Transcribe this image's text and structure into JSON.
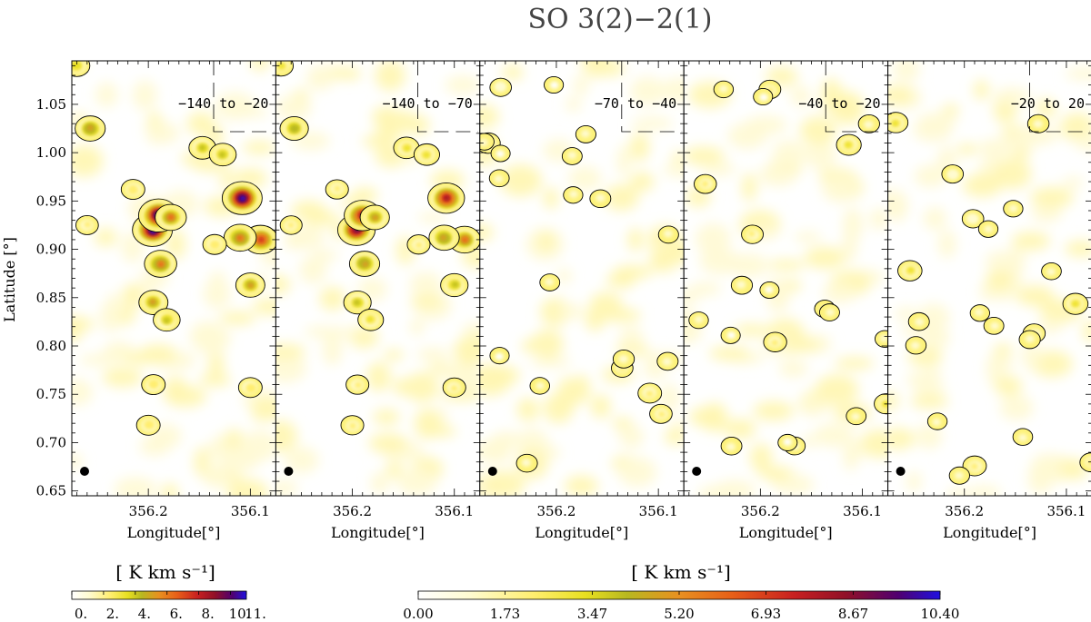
{
  "title": "SO 3(2)−2(1)",
  "chart_data": {
    "type": "heatmap",
    "title": "SO 3(2)−2(1)",
    "xlabel": "Longitude[°]",
    "ylabel": "Latitude [°]",
    "xlim": [
      356.275,
      356.075
    ],
    "ylim": [
      0.645,
      1.095
    ],
    "x_ticks": [
      "356.2",
      "356.1"
    ],
    "y_ticks": [
      "0.65",
      "0.70",
      "0.75",
      "0.80",
      "0.85",
      "0.90",
      "0.95",
      "1.00",
      "1.05"
    ],
    "panels": [
      {
        "label": "−140 to −20",
        "intensity": 1.0
      },
      {
        "label": "−140 to −70",
        "intensity": 0.85
      },
      {
        "label": "−70 to −40",
        "intensity": 0.28
      },
      {
        "label": "−40 to −20",
        "intensity": 0.3
      },
      {
        "label": "−20 to 20",
        "intensity": 0.36
      }
    ],
    "beam_marker": "filled circle (beam size)",
    "colorbars": [
      {
        "label": "[ K km s⁻¹]",
        "min": 0,
        "max": 11,
        "ticks": [
          "0.",
          "2.",
          "4.",
          "6.",
          "8.",
          "10.",
          "11."
        ],
        "tick_values": [
          0,
          2,
          4,
          6,
          8,
          10,
          11
        ]
      },
      {
        "label": "[ K km s⁻¹]",
        "min": 0,
        "max": 10.4,
        "ticks": [
          "0.00",
          "1.73",
          "3.47",
          "5.20",
          "6.93",
          "8.67",
          "10.40"
        ],
        "tick_values": [
          0,
          1.73,
          3.47,
          5.2,
          6.93,
          8.67,
          10.4
        ]
      }
    ],
    "colormap": [
      "#ffffff",
      "#fffbd0",
      "#ffee70",
      "#e8e020",
      "#b8b820",
      "#e89020",
      "#e86018",
      "#c82020",
      "#901028",
      "#500070",
      "#2010e0"
    ],
    "emission_clumps_panel1": [
      {
        "lon": 356.196,
        "lat": 0.92,
        "peak": 10.4
      },
      {
        "lon": 356.19,
        "lat": 0.935,
        "peak": 10.0
      },
      {
        "lon": 356.188,
        "lat": 0.885,
        "peak": 6.5
      },
      {
        "lon": 356.178,
        "lat": 0.933,
        "peak": 6.0
      },
      {
        "lon": 356.195,
        "lat": 0.845,
        "peak": 5.0
      },
      {
        "lon": 356.182,
        "lat": 0.827,
        "peak": 4.0
      },
      {
        "lon": 356.108,
        "lat": 0.953,
        "peak": 10.0
      },
      {
        "lon": 356.09,
        "lat": 0.91,
        "peak": 7.5
      },
      {
        "lon": 356.11,
        "lat": 0.912,
        "peak": 6.5
      },
      {
        "lon": 356.1,
        "lat": 0.863,
        "peak": 5.0
      },
      {
        "lon": 356.257,
        "lat": 1.025,
        "peak": 5.5
      },
      {
        "lon": 356.147,
        "lat": 1.005,
        "peak": 4.0
      },
      {
        "lon": 356.127,
        "lat": 0.998,
        "peak": 4.0
      },
      {
        "lon": 356.27,
        "lat": 1.09,
        "peak": 3.5
      },
      {
        "lon": 356.135,
        "lat": 0.905,
        "peak": 2.5
      },
      {
        "lon": 356.195,
        "lat": 0.76,
        "peak": 2.5
      },
      {
        "lon": 356.2,
        "lat": 0.718,
        "peak": 2.5
      },
      {
        "lon": 356.1,
        "lat": 0.757,
        "peak": 2.5
      },
      {
        "lon": 356.26,
        "lat": 0.925,
        "peak": 2.0
      },
      {
        "lon": 356.215,
        "lat": 0.962,
        "peak": 2.5
      }
    ]
  }
}
